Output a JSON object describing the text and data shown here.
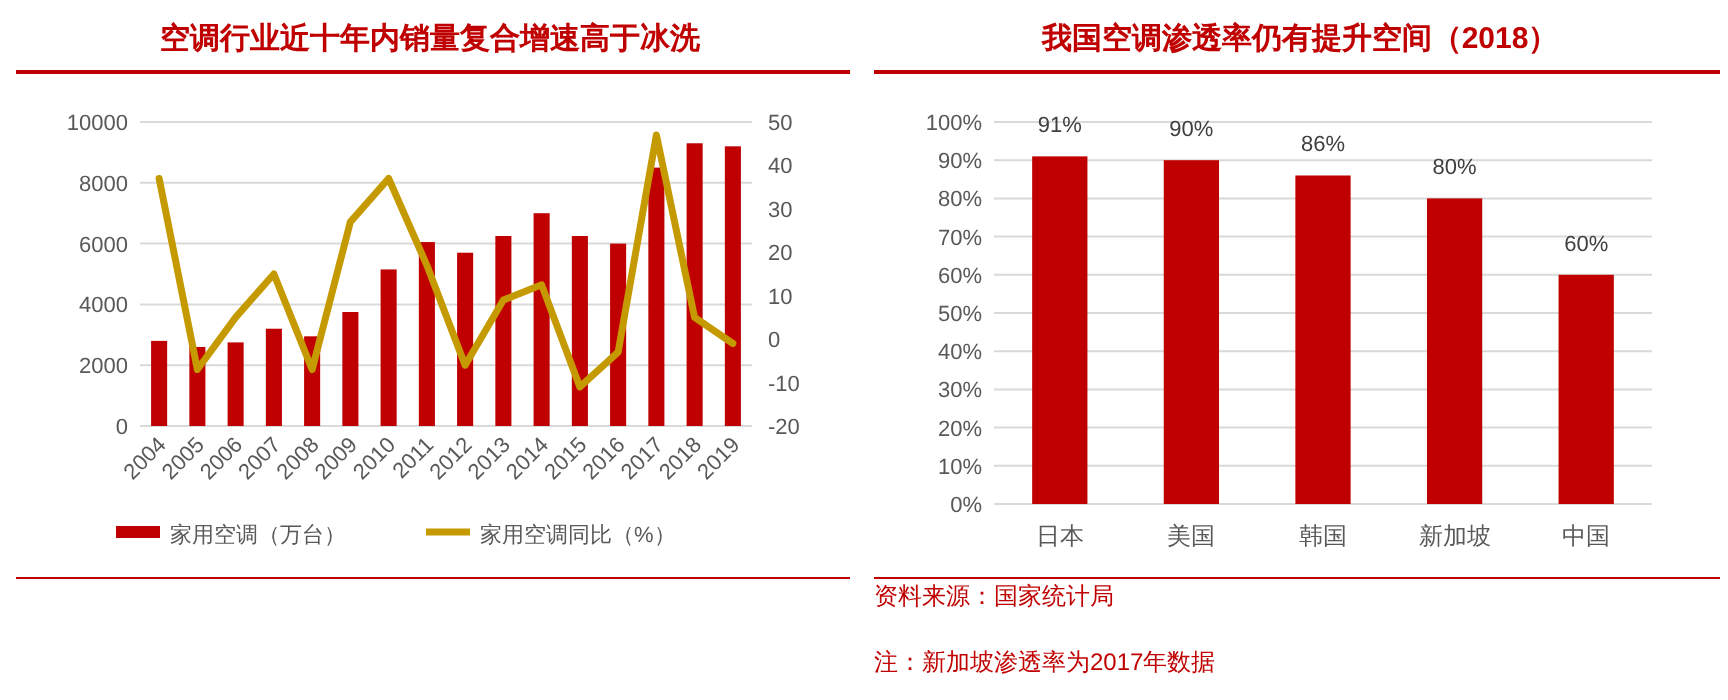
{
  "chart_data": [
    {
      "type": "bar",
      "title": "空调行业近十年内销量复合增速高于冰洗",
      "categories": [
        "2004",
        "2005",
        "2006",
        "2007",
        "2008",
        "2009",
        "2010",
        "2011",
        "2012",
        "2013",
        "2014",
        "2015",
        "2016",
        "2017",
        "2018",
        "2019"
      ],
      "series": [
        {
          "name": "家用空调（万台）",
          "color": "#c00000",
          "values": [
            2800,
            2600,
            2750,
            3200,
            2950,
            3750,
            5150,
            6050,
            5700,
            6250,
            7000,
            6250,
            6000,
            8500,
            9300,
            9200
          ]
        },
        {
          "name": "家用空调同比（%）",
          "type": "line",
          "axis": "y2",
          "color": "#c49a00",
          "values": [
            37,
            -7,
            5,
            15,
            -7,
            27,
            37,
            17,
            -6,
            9,
            12.5,
            -11,
            -3,
            47,
            5,
            -1
          ]
        }
      ],
      "ylim": [
        0,
        10000
      ],
      "yticks": [
        0,
        2000,
        4000,
        6000,
        8000,
        10000
      ],
      "y2lim": [
        -20,
        50
      ],
      "y2ticks": [
        -20,
        -10,
        0,
        10,
        20,
        30,
        40,
        50
      ],
      "grid": "y",
      "legend": "bottom"
    },
    {
      "type": "bar",
      "title": "我国空调渗透率仍有提升空间（2018）",
      "categories": [
        "日本",
        "美国",
        "韩国",
        "新加坡",
        "中国"
      ],
      "values": [
        91,
        90,
        86,
        80,
        60
      ],
      "value_labels": [
        "91%",
        "90%",
        "86%",
        "80%",
        "60%"
      ],
      "color": "#c00000",
      "ylim": [
        0,
        100
      ],
      "yticks": [
        {
          "value": 0,
          "label": "0%"
        },
        {
          "value": 10,
          "label": "10%"
        },
        {
          "value": 20,
          "label": "20%"
        },
        {
          "value": 30,
          "label": "30%"
        },
        {
          "value": 40,
          "label": "40%"
        },
        {
          "value": 50,
          "label": "50%"
        },
        {
          "value": 60,
          "label": "60%"
        },
        {
          "value": 70,
          "label": "70%"
        },
        {
          "value": 80,
          "label": "80%"
        },
        {
          "value": 90,
          "label": "90%"
        },
        {
          "value": 100,
          "label": "100%"
        }
      ],
      "grid": "y",
      "annotations": [
        "资料来源：国家统计局",
        "注：新加坡渗透率为2017年数据"
      ]
    }
  ]
}
